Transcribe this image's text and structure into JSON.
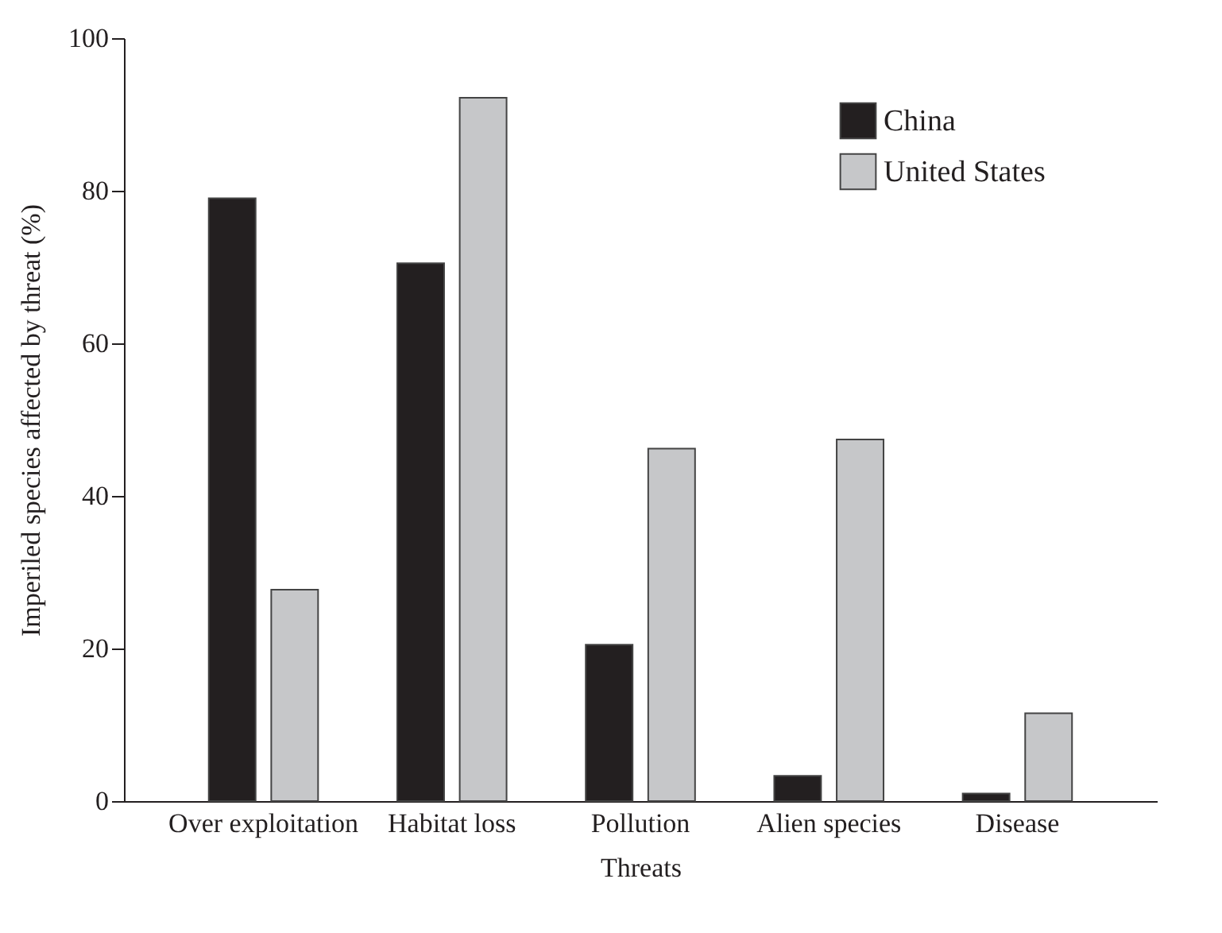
{
  "chart_data": {
    "type": "bar",
    "xlabel": "Threats",
    "ylabel": "Imperiled species affected by threat (%)",
    "categories": [
      "Over exploitation",
      "Habitat loss",
      "Pollution",
      "Alien species",
      "Disease"
    ],
    "series": [
      {
        "name": "China",
        "color": "#231f20",
        "values": [
          79.0,
          70.5,
          20.5,
          3.3,
          1.0
        ]
      },
      {
        "name": "United States",
        "color": "#c6c7c9",
        "values": [
          27.7,
          92.2,
          46.2,
          47.4,
          11.5
        ]
      }
    ],
    "ylim": [
      0,
      100
    ],
    "yticks": [
      0,
      20,
      40,
      60,
      80,
      100
    ],
    "grid": false,
    "legend": "top right"
  }
}
